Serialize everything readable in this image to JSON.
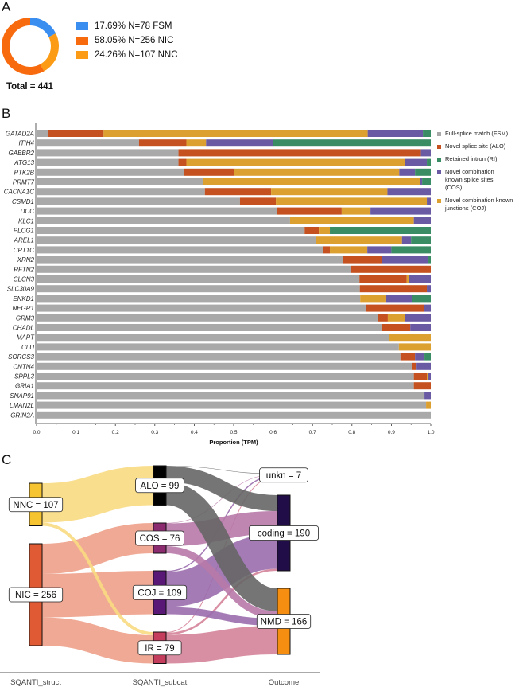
{
  "panels": {
    "a": "A",
    "b": "B",
    "c": "C"
  },
  "colors": {
    "FSM": "#3a8ef0",
    "NIC": "#f76a0d",
    "NNC": "#fb9b16",
    "bar_FSM": "#a9a9a9",
    "bar_ALO": "#c4511f",
    "bar_RI": "#3a8c64",
    "bar_COS": "#6a5aa3",
    "bar_COJ": "#dca031"
  },
  "chart_data": [
    {
      "type": "pie",
      "id": "donut",
      "slices": [
        {
          "key": "FSM",
          "label": "17.69%  N=78 FSM",
          "percent": 17.69,
          "n": 78
        },
        {
          "key": "NNC",
          "label": "24.26%  N=107 NNC",
          "percent": 24.26,
          "n": 107
        },
        {
          "key": "NIC",
          "label": "58.05%  N=256 NIC",
          "percent": 58.05,
          "n": 256
        }
      ],
      "legend_order": [
        "FSM",
        "NIC",
        "NNC"
      ],
      "total_label": "Total = 441"
    },
    {
      "type": "bar",
      "stacked": true,
      "orientation": "horizontal",
      "xlabel": "Proportion (TPM)",
      "xlim": [
        0,
        1
      ],
      "xticks": [
        "0.0",
        "0.1",
        "0.2",
        "0.3",
        "0.4",
        "0.5",
        "0.6",
        "0.7",
        "0.8",
        "0.9",
        "1.0"
      ],
      "legend": [
        {
          "key": "FSM",
          "label": "Full-splice match (FSM)"
        },
        {
          "key": "ALO",
          "label": "Novel splice site (ALO)"
        },
        {
          "key": "RI",
          "label": "Retained intron (RI)"
        },
        {
          "key": "COS",
          "label": "Novel combination known splice sites (COS)"
        },
        {
          "key": "COJ",
          "label": "Novel combination known junctions (COJ)"
        }
      ],
      "stack_order": [
        "FSM",
        "ALO",
        "COJ",
        "COS",
        "RI"
      ],
      "categories": [
        "GATAD2A",
        "ITIH4",
        "GABBR2",
        "ATG13",
        "PTK2B",
        "PRMT7",
        "CACNA1C",
        "CSMD1",
        "DCC",
        "KLC1",
        "PLCG1",
        "AREL1",
        "CPT1C",
        "XRN2",
        "RFTN2",
        "CLCN3",
        "SLC30A9",
        "ENKD1",
        "NEGR1",
        "GRM3",
        "CHADL",
        "MAPT",
        "CLU",
        "SORCS3",
        "CNTN4",
        "SPPL3",
        "GRIA1",
        "SNAP91",
        "LMAN2L",
        "GRIN2A"
      ],
      "series": [
        {
          "name": "FSM",
          "values": [
            0.03,
            0.26,
            0.36,
            0.36,
            0.373,
            0.423,
            0.427,
            0.516,
            0.609,
            0.643,
            0.68,
            0.708,
            0.726,
            0.778,
            0.798,
            0.819,
            0.82,
            0.821,
            0.836,
            0.865,
            0.877,
            0.895,
            0.919,
            0.923,
            0.952,
            0.957,
            0.957,
            0.984,
            0.988,
            1.0
          ]
        },
        {
          "name": "ALO",
          "values": [
            0.14,
            0.12,
            0.615,
            0.02,
            0.127,
            0,
            0.168,
            0.091,
            0.165,
            0,
            0.036,
            0,
            0.018,
            0.097,
            0.202,
            0.12,
            0.17,
            0,
            0.146,
            0.026,
            0.071,
            0,
            0,
            0.037,
            0.012,
            0.033,
            0.043,
            0,
            0,
            0
          ]
        },
        {
          "name": "COJ",
          "values": [
            0.67,
            0.05,
            0,
            0.555,
            0.42,
            0.55,
            0.295,
            0.383,
            0.073,
            0.314,
            0.028,
            0.219,
            0.095,
            0,
            0,
            0.005,
            0,
            0.066,
            0,
            0.043,
            0,
            0.105,
            0.081,
            0,
            0,
            0.004,
            0,
            0,
            0.012,
            0
          ]
        },
        {
          "name": "COS",
          "values": [
            0.14,
            0.17,
            0.025,
            0.055,
            0.04,
            0.005,
            0.11,
            0.01,
            0.153,
            0.043,
            0,
            0.023,
            0.061,
            0.119,
            0,
            0.056,
            0.01,
            0.065,
            0.018,
            0.066,
            0.052,
            0,
            0,
            0.024,
            0.036,
            0.006,
            0,
            0.016,
            0,
            0
          ]
        },
        {
          "name": "RI",
          "values": [
            0.02,
            0.4,
            0,
            0.01,
            0.04,
            0.022,
            0,
            0,
            0,
            0,
            0.256,
            0.05,
            0.1,
            0.006,
            0,
            0,
            0,
            0.048,
            0,
            0,
            0,
            0,
            0,
            0.016,
            0,
            0,
            0,
            0,
            0,
            0
          ]
        }
      ]
    },
    {
      "type": "sankey",
      "axis_labels": [
        "SQANTI_struct",
        "SQANTI_subcat",
        "Outcome"
      ],
      "nodes": [
        {
          "id": "NNC",
          "label": "NNC = 107",
          "value": 107,
          "column": 0,
          "color": "#f6c431"
        },
        {
          "id": "NIC",
          "label": "NIC = 256",
          "value": 256,
          "column": 0,
          "color": "#e05a34"
        },
        {
          "id": "ALO",
          "label": "ALO = 99",
          "value": 99,
          "column": 1,
          "color": "#000000"
        },
        {
          "id": "COS",
          "label": "COS = 76",
          "value": 76,
          "column": 1,
          "color": "#8c2a6f"
        },
        {
          "id": "COJ",
          "label": "COJ = 109",
          "value": 109,
          "column": 1,
          "color": "#5a1876"
        },
        {
          "id": "IR",
          "label": "IR = 79",
          "value": 79,
          "column": 1,
          "color": "#c43d5c"
        },
        {
          "id": "unkn",
          "label": "unkn = 7",
          "value": 7,
          "column": 2,
          "color": "#6a4a8a"
        },
        {
          "id": "coding",
          "label": "coding = 190",
          "value": 190,
          "column": 2,
          "color": "#210d47"
        },
        {
          "id": "NMD",
          "label": "NMD = 166",
          "value": 166,
          "column": 2,
          "color": "#f68e12"
        }
      ],
      "links": [
        {
          "source": "NNC",
          "target": "ALO",
          "value": 99,
          "color": "#f8da82"
        },
        {
          "source": "NNC",
          "target": "IR",
          "value": 8,
          "color": "#f8da82"
        },
        {
          "source": "NIC",
          "target": "COS",
          "value": 76,
          "color": "#eda089"
        },
        {
          "source": "NIC",
          "target": "COJ",
          "value": 109,
          "color": "#eda089"
        },
        {
          "source": "NIC",
          "target": "IR",
          "value": 71,
          "color": "#eda089"
        },
        {
          "source": "ALO",
          "target": "unkn",
          "value": 1,
          "color": "#666666"
        },
        {
          "source": "ALO",
          "target": "coding",
          "value": 40,
          "color": "#666666"
        },
        {
          "source": "ALO",
          "target": "NMD",
          "value": 58,
          "color": "#666666"
        },
        {
          "source": "COS",
          "target": "unkn",
          "value": 1,
          "color": "#b779a9"
        },
        {
          "source": "COS",
          "target": "coding",
          "value": 57,
          "color": "#b779a9"
        },
        {
          "source": "COS",
          "target": "NMD",
          "value": 18,
          "color": "#b779a9"
        },
        {
          "source": "COJ",
          "target": "unkn",
          "value": 3,
          "color": "#9a6dad"
        },
        {
          "source": "COJ",
          "target": "coding",
          "value": 88,
          "color": "#9a6dad"
        },
        {
          "source": "COJ",
          "target": "NMD",
          "value": 18,
          "color": "#9a6dad"
        },
        {
          "source": "IR",
          "target": "unkn",
          "value": 2,
          "color": "#d58399"
        },
        {
          "source": "IR",
          "target": "coding",
          "value": 5,
          "color": "#d58399"
        },
        {
          "source": "IR",
          "target": "NMD",
          "value": 72,
          "color": "#d58399"
        }
      ]
    }
  ]
}
